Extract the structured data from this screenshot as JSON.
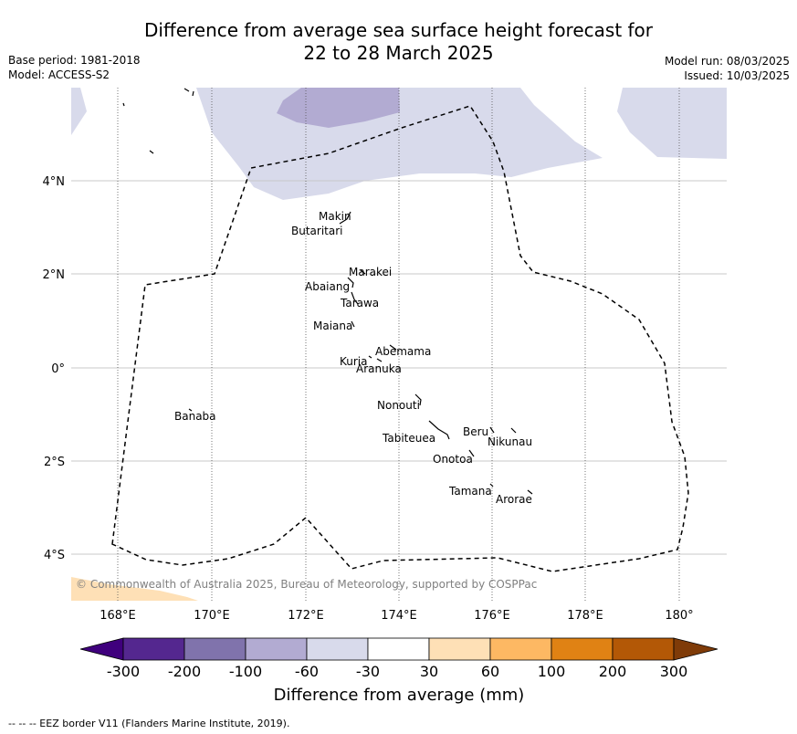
{
  "title_line1": "Difference from average sea surface height forecast for",
  "title_line2": "22 to 28 March 2025",
  "base_period": "Base period: 1981-2018",
  "model": "Model: ACCESS-S2",
  "model_run": "Model run: 08/03/2025",
  "issued": "Issued: 10/03/2025",
  "copyright": "© Commonwealth of Australia 2025, Bureau of Meteorology, supported by COSPPac",
  "footer": "--  --  -- EEZ border V11 (Flanders Marine Institute, 2019).",
  "lon_ticks": [
    "168°E",
    "170°E",
    "172°E",
    "174°E",
    "176°E",
    "178°E",
    "180°"
  ],
  "lat_ticks": [
    "4°N",
    "2°N",
    "0°",
    "2°S",
    "4°S"
  ],
  "islands": [
    {
      "name": "Makin"
    },
    {
      "name": "Butaritari"
    },
    {
      "name": "Marakei"
    },
    {
      "name": "Abaiang"
    },
    {
      "name": "Tarawa"
    },
    {
      "name": "Maiana"
    },
    {
      "name": "Abemama"
    },
    {
      "name": "Kuria"
    },
    {
      "name": "Aranuka"
    },
    {
      "name": "Nonouti"
    },
    {
      "name": "Banaba"
    },
    {
      "name": "Beru"
    },
    {
      "name": "Tabiteuea"
    },
    {
      "name": "Nikunau"
    },
    {
      "name": "Onotoa"
    },
    {
      "name": "Tamana"
    },
    {
      "name": "Arorae"
    }
  ],
  "colorbar": {
    "title": "Difference from average (mm)",
    "ticks": [
      "-300",
      "-200",
      "-100",
      "-60",
      "-30",
      "30",
      "60",
      "100",
      "200",
      "300"
    ],
    "colors": [
      "#3f007d",
      "#54278f",
      "#8073ac",
      "#b2abd2",
      "#d8daeb",
      "#ffffff",
      "#fee0b6",
      "#fdb863",
      "#e08214",
      "#b35806",
      "#7f3b08"
    ]
  }
}
